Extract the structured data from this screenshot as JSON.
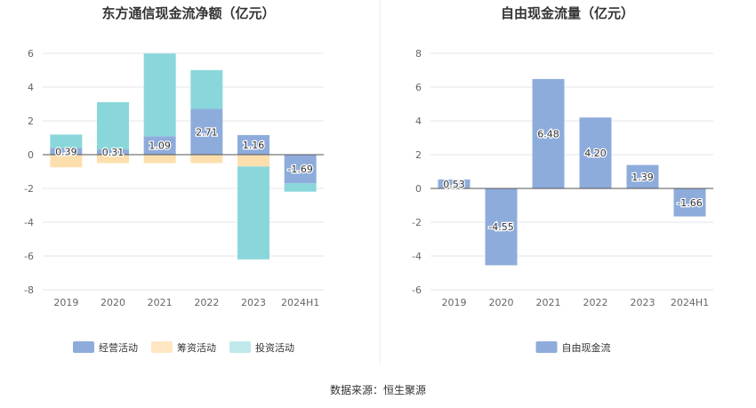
{
  "colors": {
    "operating": "#8EACDB",
    "financing": "#FDDFAE",
    "investing": "#8AD7DB",
    "free_cf": "#8EACDB",
    "grid": "#E5E5EE",
    "zero_line": "#555555",
    "divider": "#EEEEEE"
  },
  "chart_data": [
    {
      "type": "bar",
      "stacked": true,
      "title": "东方通信现金流净额（亿元）",
      "categories": [
        "2019",
        "2020",
        "2021",
        "2022",
        "2023",
        "2024H1"
      ],
      "ylim": [
        -8,
        6
      ],
      "yticks": [
        "6",
        "4",
        "2",
        "0",
        "-2",
        "-4",
        "-6",
        "-8"
      ],
      "grid": true,
      "legend_position": "bottom",
      "series": [
        {
          "name": "经营活动",
          "key": "operating",
          "values": [
            0.39,
            0.31,
            1.09,
            2.71,
            1.16,
            -1.69
          ],
          "labels": [
            "0.39",
            "0.31",
            "1.09",
            "2.71",
            "1.16",
            "-1.69"
          ]
        },
        {
          "name": "筹资活动",
          "key": "financing",
          "values": [
            -0.75,
            -0.5,
            -0.5,
            -0.5,
            -0.7,
            0
          ]
        },
        {
          "name": "投资活动",
          "key": "investing",
          "values": [
            0.8,
            2.8,
            4.9,
            2.3,
            -5.5,
            -0.5
          ]
        }
      ]
    },
    {
      "type": "bar",
      "title": "自由现金流量（亿元）",
      "categories": [
        "2019",
        "2020",
        "2021",
        "2022",
        "2023",
        "2024H1"
      ],
      "ylim": [
        -6,
        8
      ],
      "yticks": [
        "8",
        "6",
        "4",
        "2",
        "0",
        "-2",
        "-4",
        "-6"
      ],
      "grid": true,
      "legend_position": "bottom",
      "series": [
        {
          "name": "自由现金流",
          "key": "free_cf",
          "values": [
            0.53,
            -4.55,
            6.48,
            4.2,
            1.39,
            -1.66
          ],
          "labels": [
            "0.53",
            "-4.55",
            "6.48",
            "4.20",
            "1.39",
            "-1.66"
          ]
        }
      ]
    }
  ],
  "source_text": "数据来源：恒生聚源"
}
